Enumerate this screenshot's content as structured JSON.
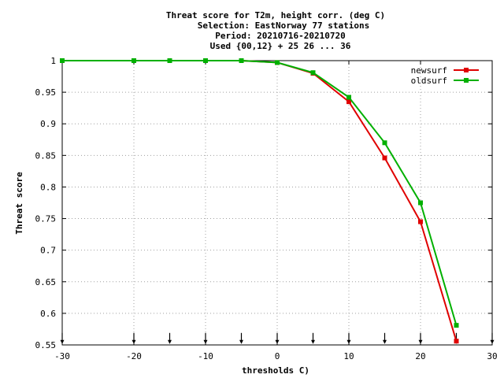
{
  "chart_data": {
    "type": "line",
    "title_lines": [
      "Threat score  for T2m, height corr. (deg C)",
      "Selection: EastNorway     77 stations",
      "Period: 20210716-20210720",
      "Used {00,12} + 25 26 ... 36"
    ],
    "xlabel": "thresholds C)",
    "ylabel": "Threat score",
    "xlim": [
      -30,
      30
    ],
    "ylim": [
      0.55,
      1.0
    ],
    "x_ticks": [
      -30,
      -20,
      -10,
      0,
      10,
      20,
      30
    ],
    "x_tick_labels": [
      "-30",
      "-20",
      "-10",
      "0",
      "10",
      "20",
      "30"
    ],
    "y_ticks": [
      0.55,
      0.6,
      0.65,
      0.7,
      0.75,
      0.8,
      0.85,
      0.9,
      0.95,
      1.0
    ],
    "y_tick_labels": [
      "0.55",
      "0.6",
      "0.65",
      "0.7",
      "0.75",
      "0.8",
      "0.85",
      "0.9",
      "0.95",
      "1"
    ],
    "legend_position": "top-right",
    "x": [
      -30,
      -20,
      -15,
      -10,
      -5,
      0,
      5,
      10,
      15,
      20,
      25
    ],
    "series": [
      {
        "name": "newsurf",
        "color": "#e00000",
        "values": [
          1.0,
          1.0,
          1.0,
          1.0,
          1.0,
          0.997,
          0.98,
          0.935,
          0.846,
          0.745,
          0.556
        ]
      },
      {
        "name": "oldsurf",
        "color": "#00b000",
        "values": [
          1.0,
          1.0,
          1.0,
          1.0,
          1.0,
          0.997,
          0.981,
          0.942,
          0.87,
          0.775,
          0.581
        ]
      }
    ],
    "threshold_arrows_x": [
      -30,
      -20,
      -15,
      -10,
      -5,
      0,
      5,
      10,
      15,
      20,
      25,
      30
    ]
  }
}
